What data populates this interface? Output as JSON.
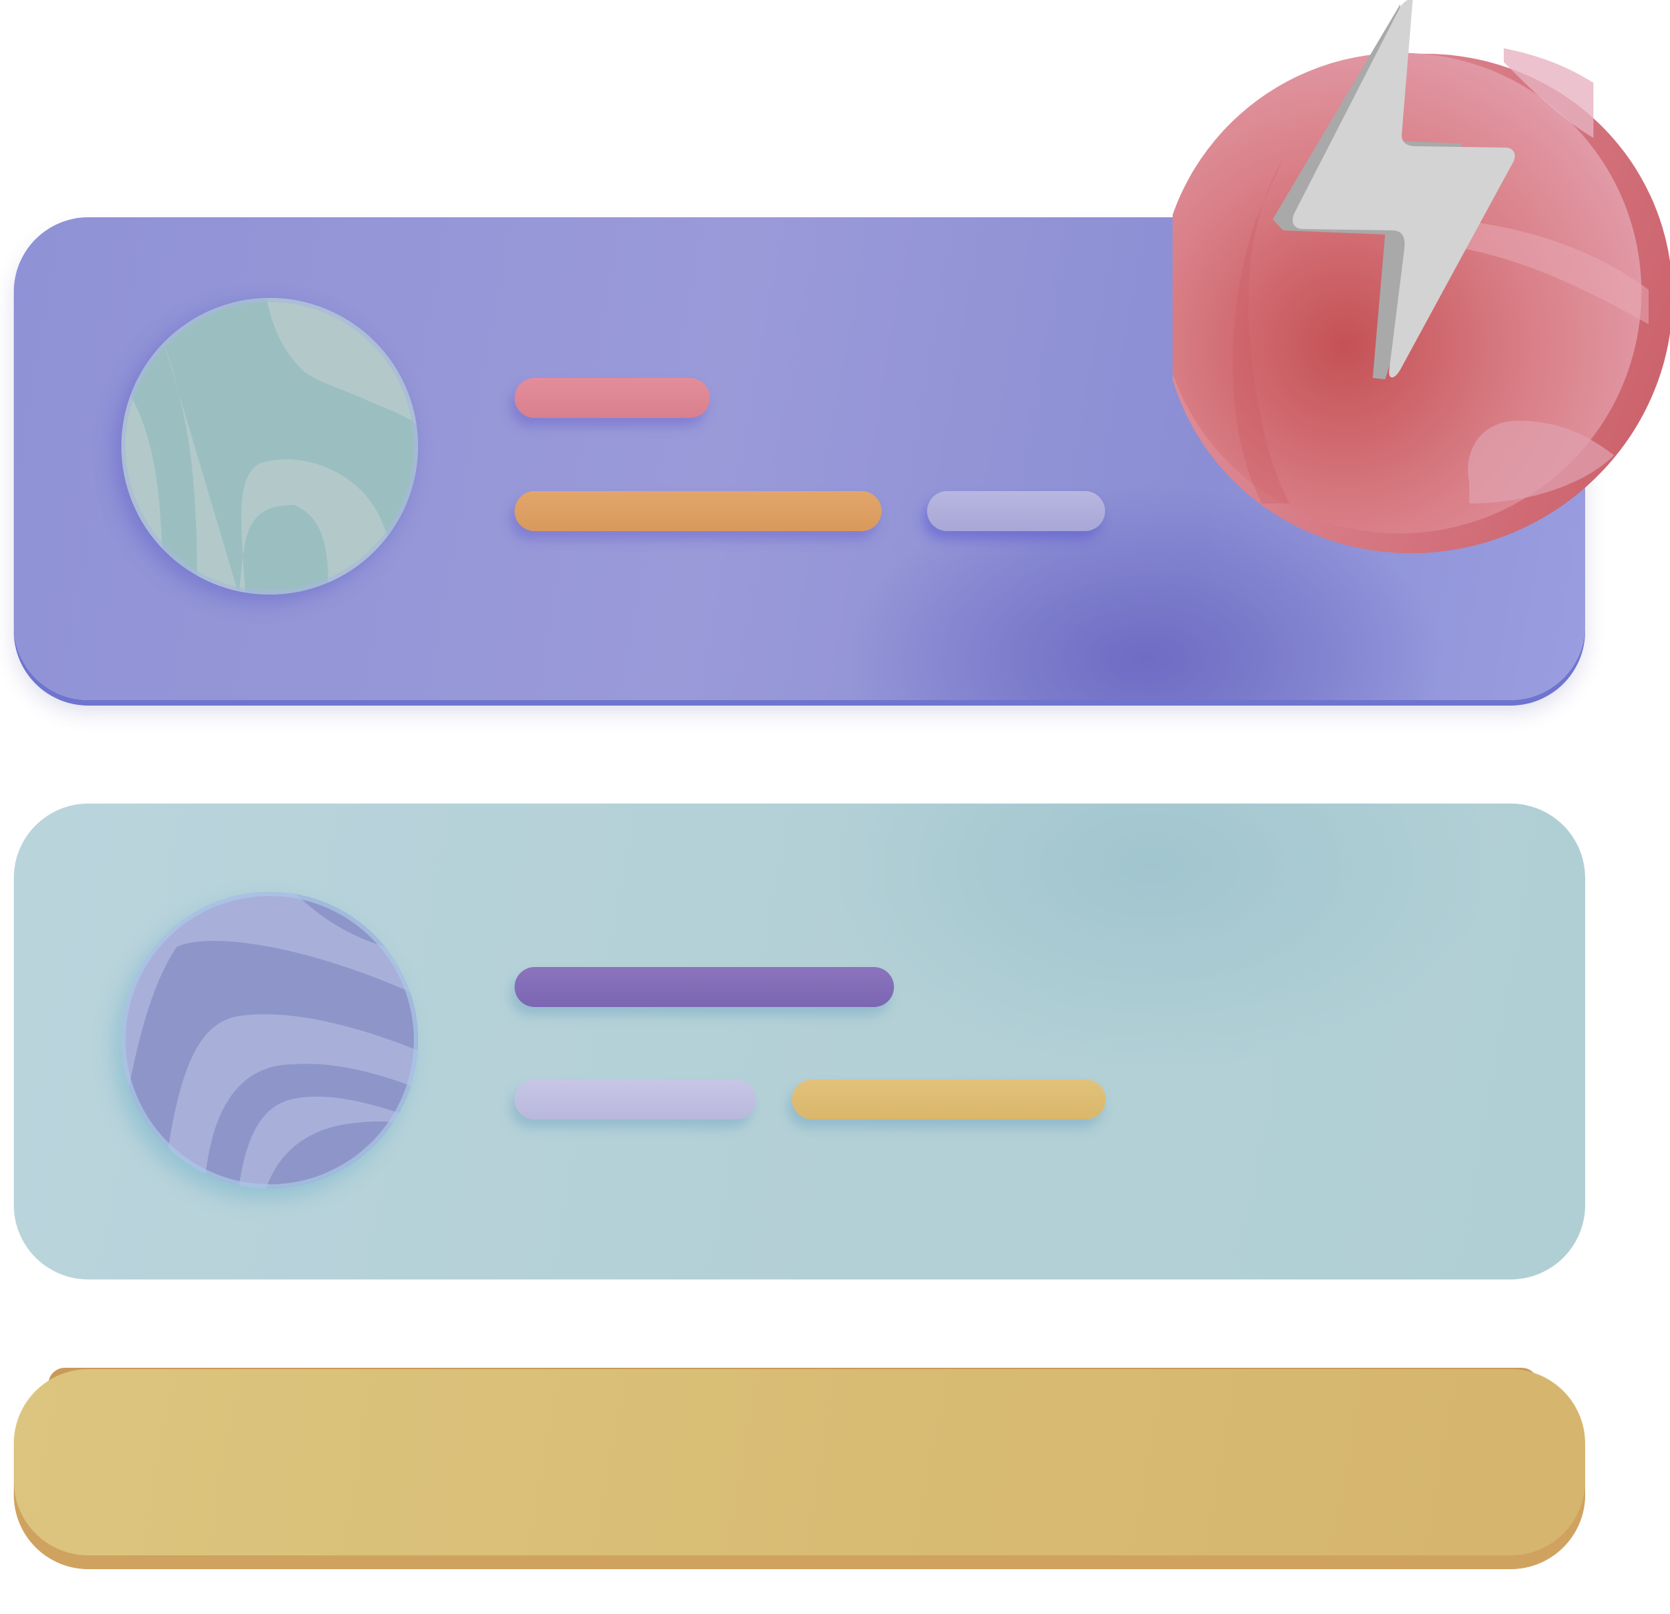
{
  "colors": {
    "card_1": "#9497d8",
    "card_2": "#b5d1d8",
    "card_3": "#d9bd75",
    "badge": "#dd7f86",
    "bolt": "#d3d3d3",
    "bar_pink": "#df8694",
    "bar_orange": "#dda063",
    "bar_lavender": "#b3b2dd",
    "bar_purple": "#836cb8",
    "bar_gold": "#ddbc72",
    "avatar_1": "#9bc0c0",
    "avatar_2": "#8e97ca"
  },
  "cards": [
    {
      "avatar_icon": "abstract-wave-avatar",
      "lines": [
        "short-pink-line",
        "long-orange-line",
        "short-lavender-line"
      ]
    },
    {
      "avatar_icon": "abstract-stripe-avatar",
      "lines": [
        "long-purple-line",
        "short-lavender-line",
        "medium-gold-line"
      ]
    },
    {
      "avatar_icon": "",
      "lines": []
    }
  ],
  "badge": {
    "icon": "lightning-bolt-icon"
  }
}
